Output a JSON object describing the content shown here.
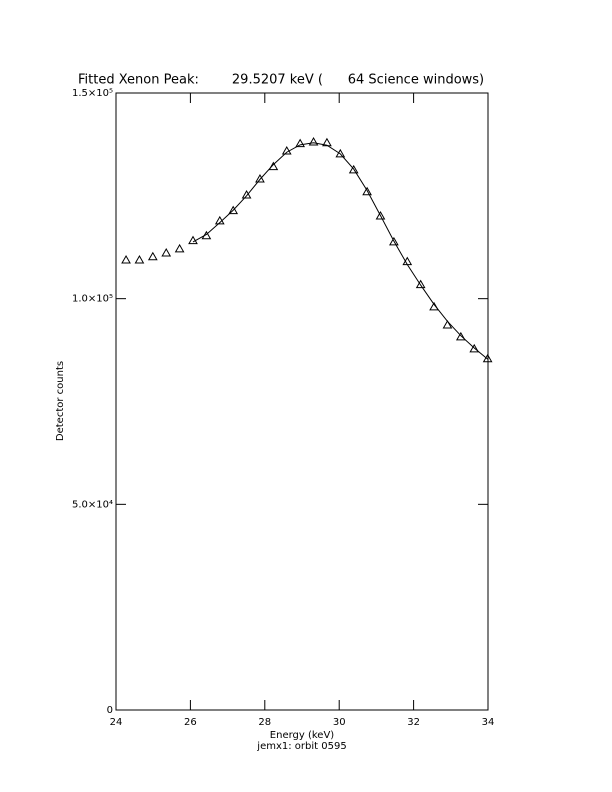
{
  "chart_data": {
    "type": "line",
    "title": "Fitted Xenon Peak:        29.5207 keV (      64 Science windows)",
    "xlabel": "Energy (keV)",
    "ylabel": "Detector counts",
    "subtitle": "jemx1: orbit 0595",
    "x": [
      24.27,
      24.63,
      24.99,
      25.35,
      25.71,
      26.07,
      26.43,
      26.79,
      27.15,
      27.51,
      27.87,
      28.23,
      28.59,
      28.95,
      29.31,
      29.67,
      30.03,
      30.39,
      30.75,
      31.11,
      31.47,
      31.83,
      32.19,
      32.55,
      32.91,
      33.27,
      33.63,
      33.99
    ],
    "series": [
      {
        "style": "triangle",
        "color": "#000000",
        "values": [
          109400,
          109400,
          110200,
          111100,
          112100,
          114100,
          115300,
          118900,
          121400,
          125200,
          129100,
          132100,
          135900,
          137700,
          138100,
          137900,
          135200,
          131300,
          126000,
          120100,
          113800,
          109000,
          103400,
          98000,
          93600,
          90700,
          87800,
          85400
        ]
      },
      {
        "style": "line",
        "color": "#000000",
        "values": [
          null,
          null,
          null,
          null,
          null,
          113800,
          115600,
          118500,
          121500,
          125000,
          129000,
          132600,
          135600,
          137400,
          137900,
          137300,
          135200,
          131500,
          126300,
          120200,
          114000,
          108300,
          103300,
          98600,
          94500,
          91000,
          88000,
          85300
        ]
      }
    ],
    "xlim": [
      24,
      34
    ],
    "xticks": [
      24,
      26,
      28,
      30,
      32,
      34
    ],
    "ylim": [
      0,
      150000
    ],
    "yticks": [
      0,
      {
        "value": 50000,
        "label": "5.0×10⁴"
      },
      {
        "value": 100000,
        "label": "1.0×10⁵"
      },
      {
        "value": 150000,
        "label": "1.5×10⁵"
      }
    ]
  }
}
